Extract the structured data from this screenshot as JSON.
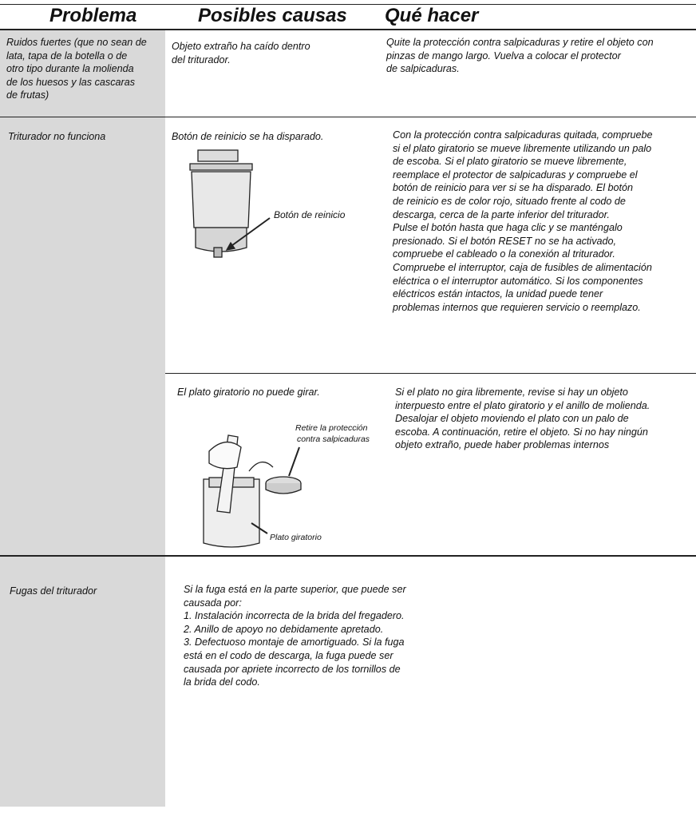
{
  "header": {
    "problem": "Problema",
    "causes": "Posibles causas",
    "action": "Qué hacer"
  },
  "rows": [
    {
      "problem": [
        "Ruidos fuertes (que no sean de",
        "lata, tapa de la botella o de",
        "otro tipo durante la molienda",
        "de los huesos y las cascaras",
        "de frutas)"
      ],
      "entries": [
        {
          "cause": [
            "Objeto extraño ha caído dentro",
            "del triturador."
          ],
          "action": [
            "Quite la protección contra salpicaduras y retire el objeto con",
            " pinzas de mango largo. Vuelva a colocar el protector",
            "de salpicaduras."
          ]
        }
      ]
    },
    {
      "problem": [
        "Triturador no funciona"
      ],
      "entries": [
        {
          "cause": [
            "Botón de reinicio se ha disparado."
          ],
          "figure_labels": [
            "Botón de reinicio"
          ],
          "action": [
            "Con la protección contra salpicaduras quitada, compruebe",
            "si el plato giratorio se mueve libremente utilizando un palo",
            "de escoba. Si el plato giratorio se mueve libremente,",
            "reemplace el protector de salpicaduras y compruebe el",
            "botón de reinicio para ver si se ha disparado. El botón",
            "de reinicio es de color rojo, situado frente al codo de",
            "descarga, cerca de la parte inferior del triturador.",
            "Pulse el botón hasta que haga clic y se manténgalo",
            "presionado. Si el botón RESET no se ha activado,",
            "compruebe el cableado o la conexión al triturador.",
            "Compruebe el interruptor, caja de fusibles de alimentación",
            "eléctrica o el interruptor automático. Si los componentes",
            "eléctricos están intactos, la unidad puede tener",
            "problemas internos que requieren servicio o reemplazo."
          ]
        },
        {
          "cause": [
            "El plato giratorio no puede girar."
          ],
          "figure_labels": [
            "Retire la protección",
            "contra salpicaduras",
            "Plato giratorio"
          ],
          "action": [
            "Si el plato no gira libremente, revise si hay un objeto",
            "interpuesto entre el plato giratorio y el anillo de molienda.",
            "Desalojar el objeto moviendo el plato con un palo de",
            "escoba. A continuación, retire el objeto. Si no hay ningún",
            "objeto extraño, puede haber problemas internos"
          ]
        }
      ]
    },
    {
      "problem": [
        "Fugas del triturador"
      ],
      "entries": [
        {
          "cause": [
            "Si la fuga está en la parte superior, que puede ser",
            "causada por:",
            "1. Instalación incorrecta de la brida del fregadero.",
            "2. Anillo de apoyo no debidamente apretado.",
            "3. Defectuoso montaje de amortiguado. Si la fuga",
            "está en el codo de descarga, la fuga puede ser",
            "causada por apriete incorrecto de los tornillos de",
            "la brida del codo."
          ]
        }
      ]
    }
  ]
}
